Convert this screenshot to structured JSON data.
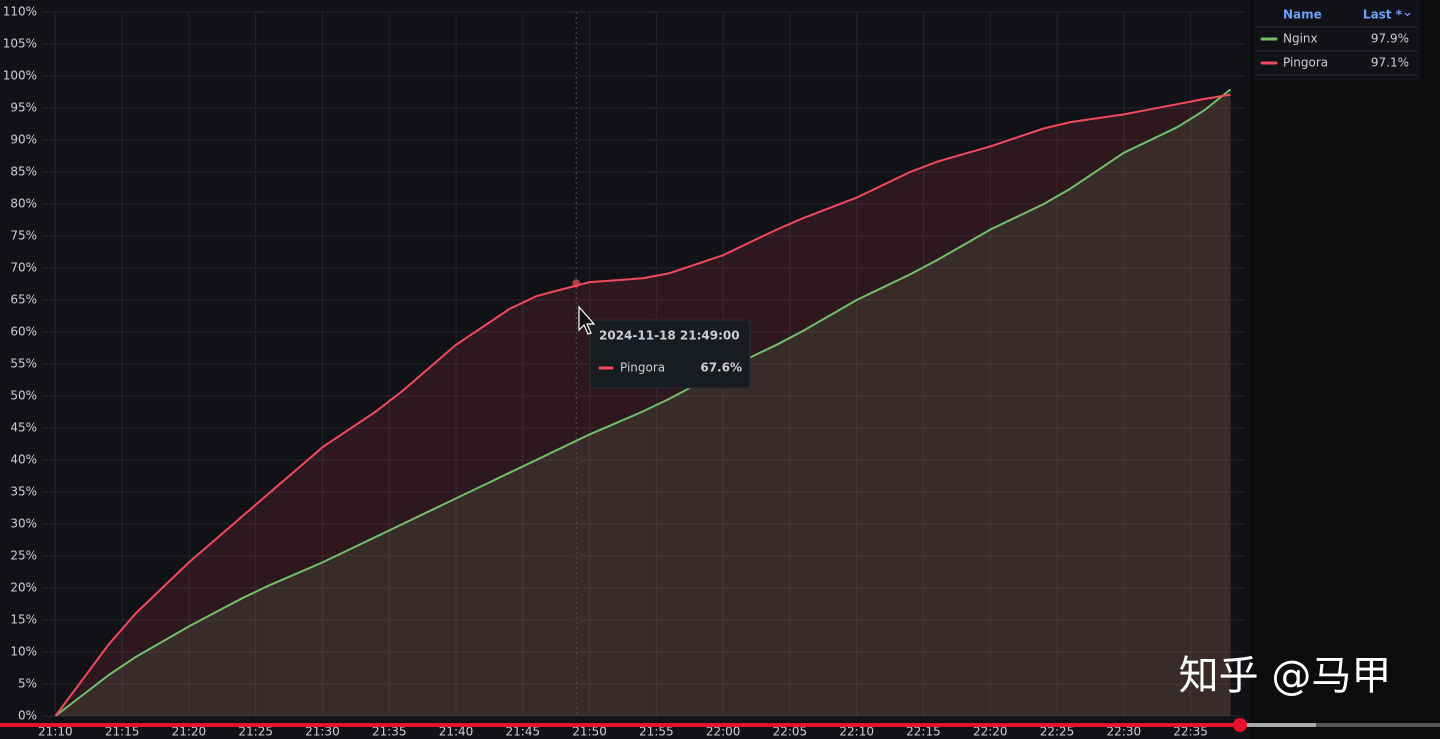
{
  "chart_data": {
    "type": "line",
    "x": [
      "21:10",
      "21:12",
      "21:14",
      "21:16",
      "21:18",
      "21:20",
      "21:22",
      "21:24",
      "21:26",
      "21:28",
      "21:30",
      "21:32",
      "21:34",
      "21:36",
      "21:38",
      "21:40",
      "21:42",
      "21:44",
      "21:46",
      "21:48",
      "21:50",
      "21:52",
      "21:54",
      "21:56",
      "21:58",
      "22:00",
      "22:02",
      "22:04",
      "22:06",
      "22:08",
      "22:10",
      "22:12",
      "22:14",
      "22:16",
      "22:18",
      "22:20",
      "22:22",
      "22:24",
      "22:26",
      "22:28",
      "22:30",
      "22:32",
      "22:34",
      "22:36",
      "22:38"
    ],
    "series": [
      {
        "name": "Nginx",
        "color": "#73bf69",
        "last_label": "97.9%",
        "values": [
          0,
          3.2,
          6.4,
          9.2,
          11.6,
          14,
          16.2,
          18.4,
          20.4,
          22.2,
          24,
          26,
          28,
          30,
          32,
          34,
          36,
          38,
          40,
          42,
          44,
          45.8,
          47.6,
          49.6,
          51.8,
          54,
          56,
          58,
          60.2,
          62.6,
          65,
          67,
          69,
          71.2,
          73.6,
          76,
          78,
          80,
          82.4,
          85.2,
          88,
          90,
          92,
          94.6,
          97.9
        ]
      },
      {
        "name": "Pingora",
        "color": "#f2495c",
        "last_label": "97.1%",
        "values": [
          0,
          5.6,
          11.2,
          16,
          20,
          24,
          27.6,
          31.2,
          34.8,
          38.4,
          42,
          44.8,
          47.6,
          50.8,
          54.4,
          58,
          60.8,
          63.6,
          65.6,
          66.7,
          67.8,
          68.1,
          68.4,
          69.2,
          70.6,
          72,
          74,
          76,
          77.8,
          79.4,
          81,
          83,
          85,
          86.6,
          87.8,
          89,
          90.4,
          91.8,
          92.8,
          93.4,
          94,
          94.8,
          95.6,
          96.4,
          97.1
        ]
      }
    ],
    "xlim": [
      "21:09",
      "22:39"
    ],
    "xticks": [
      "21:10",
      "21:15",
      "21:20",
      "21:25",
      "21:30",
      "21:35",
      "21:40",
      "21:45",
      "21:50",
      "21:55",
      "22:00",
      "22:05",
      "22:10",
      "22:15",
      "22:20",
      "22:25",
      "22:30",
      "22:35"
    ],
    "ylim": [
      0,
      110
    ],
    "yticks": [
      {
        "value": 0,
        "label": "0%"
      },
      {
        "value": 5,
        "label": "5%"
      },
      {
        "value": 10,
        "label": "10%"
      },
      {
        "value": 15,
        "label": "15%"
      },
      {
        "value": 20,
        "label": "20%"
      },
      {
        "value": 25,
        "label": "25%"
      },
      {
        "value": 30,
        "label": "30%"
      },
      {
        "value": 35,
        "label": "35%"
      },
      {
        "value": 40,
        "label": "40%"
      },
      {
        "value": 45,
        "label": "45%"
      },
      {
        "value": 50,
        "label": "50%"
      },
      {
        "value": 55,
        "label": "55%"
      },
      {
        "value": 60,
        "label": "60%"
      },
      {
        "value": 65,
        "label": "65%"
      },
      {
        "value": 70,
        "label": "70%"
      },
      {
        "value": 75,
        "label": "75%"
      },
      {
        "value": 80,
        "label": "80%"
      },
      {
        "value": 85,
        "label": "85%"
      },
      {
        "value": 90,
        "label": "90%"
      },
      {
        "value": 95,
        "label": "95%"
      },
      {
        "value": 100,
        "label": "100%"
      },
      {
        "value": 105,
        "label": "105%"
      },
      {
        "value": 110,
        "label": "110%"
      }
    ],
    "grid": true,
    "legend": {
      "name_header": "Name",
      "last_header": "Last *",
      "position": "right"
    },
    "tooltip": {
      "time": "2024-11-18 21:49:00",
      "x": "21:49",
      "series": "Pingora",
      "value": 67.6,
      "value_label": "67.6%"
    },
    "watermark": "知乎 @马甲"
  }
}
